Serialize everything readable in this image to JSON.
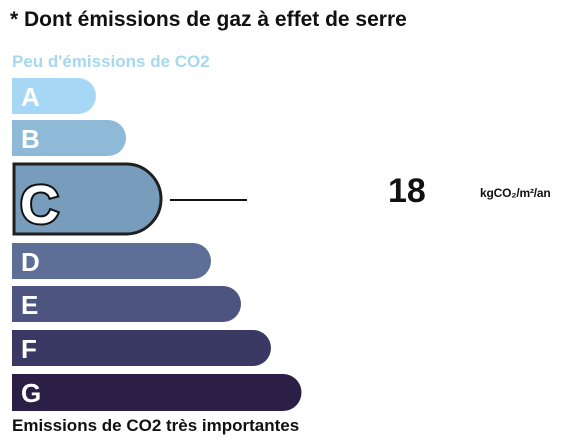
{
  "header": {
    "title": "* Dont émissions de gaz à effet de serre"
  },
  "scale": {
    "top_label": "Peu d'émissions de CO2",
    "bottom_label": "Emissions de CO2 très importantes",
    "top_label_color": "#a7d8ef",
    "active_class": "C",
    "classes": [
      {
        "letter": "A",
        "color": "#a6d8f5"
      },
      {
        "letter": "B",
        "color": "#8fbad7"
      },
      {
        "letter": "C",
        "color": "#789cbb"
      },
      {
        "letter": "D",
        "color": "#5e6f97"
      },
      {
        "letter": "E",
        "color": "#4c547f"
      },
      {
        "letter": "F",
        "color": "#3a3964"
      },
      {
        "letter": "G",
        "color": "#2b1f45"
      }
    ]
  },
  "indicator": {
    "value": "18",
    "unit": "kgCO₂/m²/an"
  }
}
